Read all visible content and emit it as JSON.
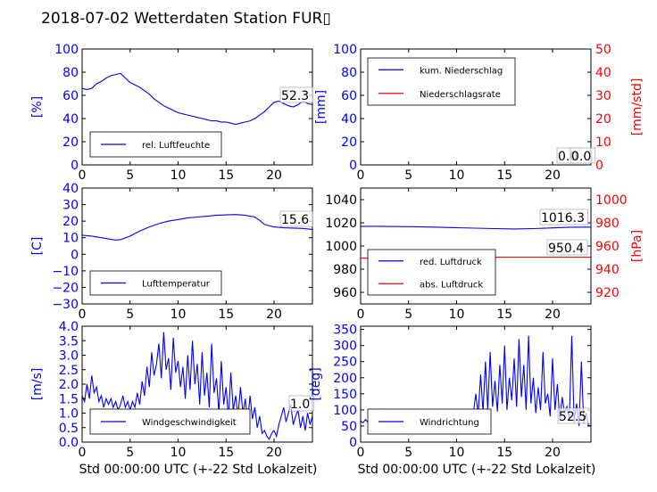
{
  "figure": {
    "title": "2018-07-02 Wetterdaten Station FUR▯",
    "xlabel_left": "Std 00:00:00 UTC (+-22 Std Lokalzeit)",
    "xlabel_right": "Std 00:00:00 UTC (+-22 Std Lokalzeit)"
  },
  "colors": {
    "primary": "#0000ff",
    "secondary": "#ff0000",
    "axis": "#000000"
  },
  "chart_data": [
    {
      "id": "humidity",
      "type": "line",
      "grid": false,
      "xlim": [
        0,
        24
      ],
      "xticks": [
        "0",
        "5",
        "10",
        "15",
        "20"
      ],
      "ylabel": "[%]",
      "ylim": [
        0,
        100
      ],
      "yticks": [
        "0",
        "20",
        "40",
        "60",
        "80",
        "100"
      ],
      "legend": {
        "placement": "lower-left",
        "entries": [
          "rel. Luftfeuchte"
        ]
      },
      "annotations": [
        "52.3"
      ],
      "series": [
        {
          "name": "rel. Luftfeuchte",
          "axis": "left",
          "color": "#0000ff",
          "x": [
            0,
            0.5,
            1,
            1.5,
            2,
            2.5,
            3,
            3.5,
            4,
            4.5,
            5,
            5.5,
            6,
            6.5,
            7,
            7.5,
            8,
            8.5,
            9,
            9.5,
            10,
            10.5,
            11,
            11.5,
            12,
            12.5,
            13,
            13.5,
            14,
            14.5,
            15,
            15.5,
            16,
            16.5,
            17,
            17.5,
            18,
            18.5,
            19,
            19.5,
            20,
            20.5,
            21,
            21.5,
            22,
            22.5,
            23,
            23.5,
            24
          ],
          "y": [
            66,
            65,
            66,
            70,
            72,
            75,
            77,
            78,
            79,
            75,
            71,
            69,
            67,
            64,
            61,
            57,
            54,
            51,
            49,
            47,
            45,
            44,
            43,
            42,
            41,
            40,
            39,
            38,
            38,
            37,
            37,
            36,
            35,
            36,
            37,
            38,
            40,
            43,
            46,
            50,
            54,
            55,
            53,
            51,
            50,
            52,
            55,
            53,
            52
          ]
        }
      ]
    },
    {
      "id": "precip",
      "type": "line",
      "grid": false,
      "xlim": [
        0,
        24
      ],
      "xticks": [
        "0",
        "5",
        "10",
        "15",
        "20"
      ],
      "ylabel": "[mm]",
      "ylim": [
        0,
        100
      ],
      "yticks": [
        "0",
        "20",
        "40",
        "60",
        "80",
        "100"
      ],
      "ylabel_right": "[mm/std]",
      "ylim_right": [
        0,
        50
      ],
      "yticks_right": [
        "0",
        "10",
        "20",
        "30",
        "40",
        "50"
      ],
      "legend": {
        "placement": "top-left",
        "entries": [
          "kum. Niederschlag",
          "Niederschlagsrate"
        ]
      },
      "annotations": [
        "0.0",
        "0.0"
      ],
      "series": [
        {
          "name": "kum. Niederschlag",
          "axis": "left",
          "color": "#0000ff",
          "x": [
            0,
            24
          ],
          "y": [
            0,
            0
          ]
        },
        {
          "name": "Niederschlagsrate",
          "axis": "right",
          "color": "#ff0000",
          "x": [
            0,
            24
          ],
          "y": [
            0,
            0
          ]
        }
      ]
    },
    {
      "id": "temperature",
      "type": "line",
      "grid": false,
      "xlim": [
        0,
        24
      ],
      "xticks": [
        "0",
        "5",
        "10",
        "15",
        "20"
      ],
      "ylabel": "[C]",
      "ylim": [
        -30,
        40
      ],
      "yticks": [
        "−30",
        "−20",
        "−10",
        "0",
        "10",
        "20",
        "30",
        "40"
      ],
      "legend": {
        "placement": "lower-left",
        "entries": [
          "Lufttemperatur"
        ]
      },
      "annotations": [
        "15.6"
      ],
      "series": [
        {
          "name": "Lufttemperatur",
          "axis": "left",
          "color": "#0000ff",
          "x": [
            0,
            1,
            2,
            3,
            3.5,
            4,
            5,
            6,
            7,
            8,
            9,
            10,
            11,
            12,
            13,
            14,
            15,
            16,
            17,
            18,
            18.5,
            19,
            20,
            21,
            22,
            23,
            24
          ],
          "y": [
            11.5,
            11,
            10,
            9,
            8.6,
            8.8,
            11,
            14,
            16.5,
            18.5,
            20,
            21,
            22,
            22.5,
            23,
            23.5,
            23.8,
            24,
            23.5,
            22.5,
            20.5,
            18,
            16.5,
            16,
            15.8,
            15.6,
            15
          ]
        }
      ]
    },
    {
      "id": "pressure",
      "type": "line",
      "grid": false,
      "xlim": [
        0,
        24
      ],
      "xticks": [
        "0",
        "5",
        "10",
        "15",
        "20"
      ],
      "ylim": [
        950,
        1050
      ],
      "yticks": [
        "960",
        "980",
        "1000",
        "1020",
        "1040"
      ],
      "ylabel_right": "[hPa]",
      "ylim_right": [
        910,
        1010
      ],
      "yticks_right": [
        "920",
        "940",
        "960",
        "980",
        "1000"
      ],
      "legend": {
        "placement": "lower-left",
        "entries": [
          "red. Luftdruck",
          "abs. Luftdruck"
        ]
      },
      "annotations": [
        "1016.3",
        "950.4"
      ],
      "series": [
        {
          "name": "red. Luftdruck",
          "axis": "left",
          "color": "#0000ff",
          "x": [
            0,
            2,
            4,
            6,
            8,
            10,
            12,
            14,
            16,
            18,
            20,
            22,
            24
          ],
          "y": [
            1017,
            1017,
            1016.8,
            1016.6,
            1016.2,
            1015.8,
            1015.4,
            1015,
            1014.7,
            1015,
            1015.6,
            1016.2,
            1016.3
          ]
        },
        {
          "name": "abs. Luftdruck",
          "axis": "right",
          "color": "#ff0000",
          "x": [
            0,
            2,
            4,
            6,
            8,
            10,
            12,
            14,
            16,
            18,
            20,
            22,
            24
          ],
          "y": [
            949.5,
            949.3,
            949.6,
            949.8,
            950,
            950.2,
            950.3,
            950.3,
            950.4,
            950.4,
            950.4,
            950.4,
            950.4
          ]
        }
      ]
    },
    {
      "id": "windspeed",
      "type": "line",
      "grid": false,
      "xlim": [
        0,
        24
      ],
      "xticks": [
        "0",
        "5",
        "10",
        "15",
        "20"
      ],
      "ylabel": "[m/s]",
      "ylim": [
        0,
        4
      ],
      "yticks": [
        "0.0",
        "0.5",
        "1.0",
        "1.5",
        "2.0",
        "2.5",
        "3.0",
        "3.5",
        "4.0"
      ],
      "legend": {
        "placement": "lower-left",
        "entries": [
          "Windgeschwindigkeit"
        ]
      },
      "annotations": [
        "1.0"
      ],
      "series": [
        {
          "name": "Windgeschwindigkeit",
          "axis": "left",
          "color": "#0000ff",
          "x": [
            0,
            0.25,
            0.5,
            0.75,
            1,
            1.25,
            1.5,
            1.75,
            2,
            2.25,
            2.5,
            2.75,
            3,
            3.25,
            3.5,
            3.75,
            4,
            4.25,
            4.5,
            4.75,
            5,
            5.25,
            5.5,
            5.75,
            6,
            6.25,
            6.5,
            6.75,
            7,
            7.25,
            7.5,
            7.75,
            8,
            8.25,
            8.5,
            8.75,
            9,
            9.25,
            9.5,
            9.75,
            10,
            10.25,
            10.5,
            10.75,
            11,
            11.25,
            11.5,
            11.75,
            12,
            12.25,
            12.5,
            12.75,
            13,
            13.25,
            13.5,
            13.75,
            14,
            14.25,
            14.5,
            14.75,
            15,
            15.25,
            15.5,
            15.75,
            16,
            16.25,
            16.5,
            16.75,
            17,
            17.25,
            17.5,
            17.75,
            18,
            18.25,
            18.5,
            18.75,
            19,
            19.25,
            19.5,
            19.75,
            20,
            20.25,
            20.5,
            20.75,
            21,
            21.25,
            21.5,
            21.75,
            22,
            22.25,
            22.5,
            22.75,
            23,
            23.25,
            23.5,
            23.75,
            24
          ],
          "y": [
            1.6,
            1.4,
            2.0,
            1.5,
            2.3,
            1.7,
            1.9,
            1.4,
            1.6,
            1.2,
            1.5,
            1.3,
            1.5,
            1.2,
            1.4,
            1.1,
            1.3,
            1.6,
            1.2,
            1.4,
            1.1,
            1.4,
            1.2,
            1.7,
            1.3,
            2.1,
            1.6,
            2.6,
            1.9,
            3.1,
            2.3,
            2.7,
            3.4,
            2.2,
            3.8,
            2.5,
            2.9,
            1.8,
            3.6,
            2.4,
            2.8,
            1.9,
            2.6,
            1.5,
            3.0,
            1.8,
            3.5,
            2.0,
            2.7,
            1.3,
            3.1,
            1.6,
            2.4,
            1.2,
            3.4,
            1.7,
            2.2,
            1.0,
            2.8,
            1.3,
            1.9,
            0.8,
            2.4,
            1.1,
            1.6,
            0.9,
            1.9,
            1.0,
            1.5,
            0.7,
            1.6,
            0.8,
            1.2,
            0.5,
            0.9,
            0.3,
            0.4,
            0.2,
            0.1,
            0.3,
            0.4,
            0.2,
            0.6,
            0.9,
            1.2,
            0.7,
            1.0,
            1.3,
            0.6,
            0.9,
            1.1,
            0.5,
            0.9,
            0.4,
            1.0,
            0.6,
            0.9
          ]
        }
      ]
    },
    {
      "id": "winddir",
      "type": "line",
      "grid": false,
      "xlim": [
        0,
        24
      ],
      "xticks": [
        "0",
        "5",
        "10",
        "15",
        "20"
      ],
      "ylabel": "[deg]",
      "ylim": [
        0,
        360
      ],
      "yticks": [
        "0",
        "50",
        "100",
        "150",
        "200",
        "250",
        "300",
        "350"
      ],
      "legend": {
        "placement": "lower-left",
        "entries": [
          "Windrichtung"
        ]
      },
      "annotations": [
        "52.5"
      ],
      "series": [
        {
          "name": "Windrichtung",
          "axis": "left",
          "color": "#0000ff",
          "x": [
            0,
            0.25,
            0.5,
            0.75,
            1,
            1.25,
            1.5,
            1.75,
            2,
            2.25,
            2.5,
            2.75,
            3,
            3.25,
            3.5,
            3.75,
            4,
            4.25,
            4.5,
            4.75,
            5,
            5.25,
            5.5,
            5.75,
            6,
            6.25,
            6.5,
            6.75,
            7,
            7.25,
            7.5,
            7.75,
            8,
            8.25,
            8.5,
            8.75,
            9,
            9.25,
            9.5,
            9.75,
            10,
            10.25,
            10.5,
            10.75,
            11,
            11.25,
            11.5,
            11.75,
            12,
            12.25,
            12.5,
            12.75,
            13,
            13.25,
            13.5,
            13.75,
            14,
            14.25,
            14.5,
            14.75,
            15,
            15.25,
            15.5,
            15.75,
            16,
            16.25,
            16.5,
            16.75,
            17,
            17.25,
            17.5,
            17.75,
            18,
            18.25,
            18.5,
            18.75,
            19,
            19.25,
            19.5,
            19.75,
            20,
            20.25,
            20.5,
            20.75,
            21,
            21.25,
            21.5,
            21.75,
            22,
            22.25,
            22.5,
            22.75,
            23,
            23.25,
            23.5,
            23.75,
            24
          ],
          "y": [
            65,
            60,
            70,
            62,
            68,
            58,
            64,
            70,
            66,
            72,
            63,
            69,
            74,
            66,
            71,
            78,
            68,
            75,
            70,
            80,
            73,
            77,
            85,
            74,
            82,
            76,
            88,
            79,
            84,
            90,
            81,
            87,
            83,
            92,
            85,
            95,
            88,
            91,
            84,
            98,
            86,
            93,
            89,
            100,
            92,
            87,
            96,
            90,
            150,
            85,
            210,
            95,
            250,
            100,
            280,
            110,
            190,
            95,
            240,
            120,
            300,
            100,
            200,
            130,
            260,
            110,
            320,
            140,
            240,
            100,
            330,
            120,
            200,
            90,
            170,
            100,
            280,
            120,
            150,
            80,
            260,
            100,
            180,
            70,
            140,
            90,
            110,
            70,
            330,
            60,
            120,
            50,
            250,
            60,
            90,
            50,
            52
          ]
        }
      ]
    }
  ]
}
